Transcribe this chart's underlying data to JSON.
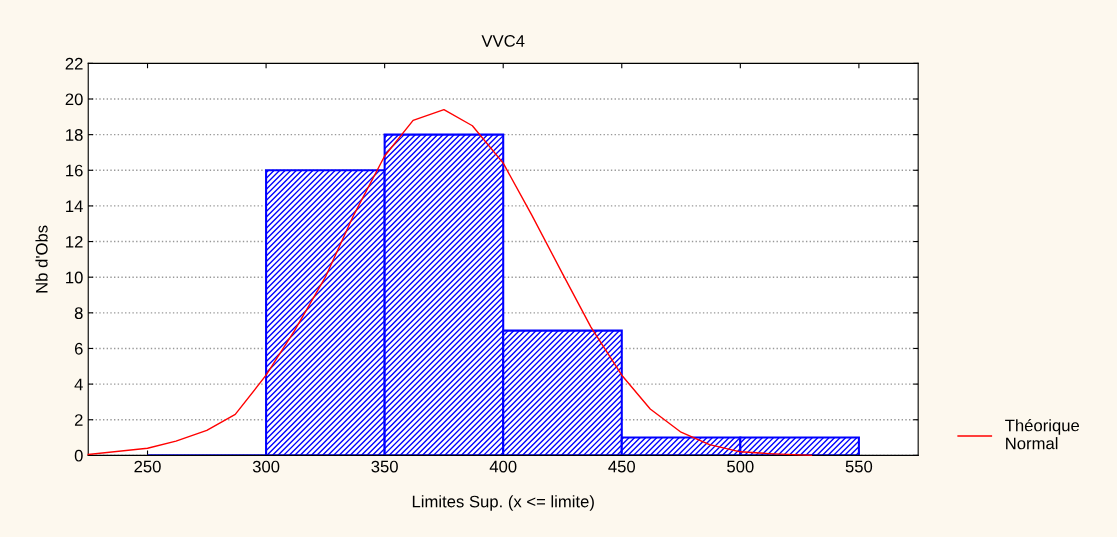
{
  "chart_data": {
    "type": "histogram",
    "title": "VVC4",
    "xlabel": "Limites Sup. (x <= limite)",
    "ylabel": "Nb d'Obs",
    "bins": [
      250,
      300,
      350,
      400,
      450,
      500,
      550
    ],
    "values": [
      0,
      16,
      18,
      7,
      1,
      1
    ],
    "color": "#0000ff",
    "series": [
      {
        "type": "line",
        "name": "Théorique\nNormal",
        "color": "#ff0000",
        "x": [
          225,
          250,
          262,
          275,
          287,
          300,
          312,
          325,
          337,
          350,
          362,
          375,
          387,
          400,
          412,
          425,
          437,
          450,
          462,
          475,
          487,
          500,
          512,
          530
        ],
        "values": [
          0.05,
          0.4,
          0.8,
          1.4,
          2.3,
          4.5,
          7,
          10,
          13.5,
          16.8,
          18.8,
          19.4,
          18.5,
          16.4,
          13.5,
          10.2,
          7.2,
          4.5,
          2.6,
          1.3,
          0.6,
          0.2,
          0.1,
          0
        ]
      }
    ],
    "xlim": [
      225,
      575
    ],
    "xticks": [
      250,
      300,
      350,
      400,
      450,
      500,
      550
    ],
    "ylim": [
      0,
      22
    ],
    "yticks": [
      0,
      2,
      4,
      6,
      8,
      10,
      12,
      14,
      16,
      18,
      20,
      22
    ],
    "grid": "y",
    "legend": "right"
  }
}
